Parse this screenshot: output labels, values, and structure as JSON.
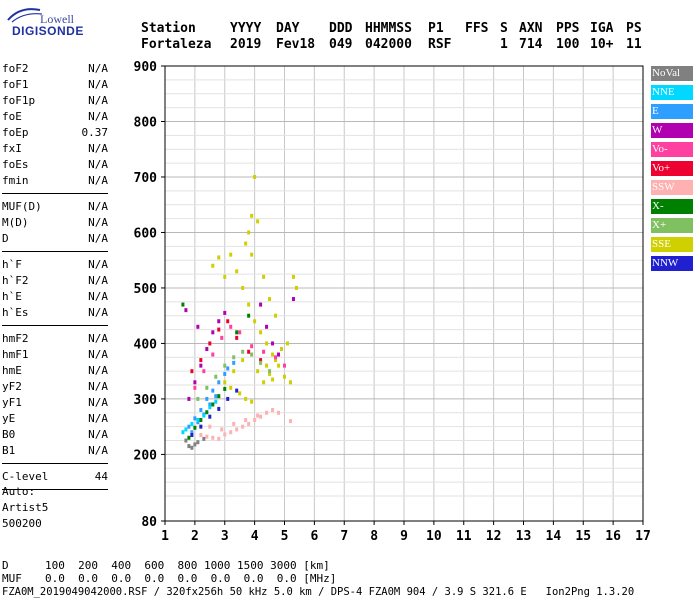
{
  "logo": {
    "brand_top": "Lowell",
    "brand_main": "DIGISONDE"
  },
  "header": {
    "labels": [
      "Station",
      "YYYY",
      "DAY",
      "DDD",
      "HHMMSS",
      "P1",
      "FFS",
      "S",
      "AXN",
      "PPS",
      "IGA",
      "PS"
    ],
    "values": [
      "Fortaleza",
      "2019",
      "Fev18",
      "049",
      "042000",
      "RSF",
      "",
      "1",
      "714",
      "100",
      "10+",
      "11"
    ]
  },
  "params_group1": [
    {
      "label": "foF2",
      "value": "N/A"
    },
    {
      "label": "foF1",
      "value": "N/A"
    },
    {
      "label": "foF1p",
      "value": "N/A"
    },
    {
      "label": "foE",
      "value": "N/A"
    },
    {
      "label": "foEp",
      "value": "0.37"
    },
    {
      "label": "fxI",
      "value": "N/A"
    },
    {
      "label": "foEs",
      "value": "N/A"
    },
    {
      "label": "fmin",
      "value": "N/A"
    }
  ],
  "params_group2": [
    {
      "label": "MUF(D)",
      "value": "N/A"
    },
    {
      "label": "M(D)",
      "value": "N/A"
    },
    {
      "label": "D",
      "value": "N/A"
    }
  ],
  "params_group3": [
    {
      "label": "h`F",
      "value": "N/A"
    },
    {
      "label": "h`F2",
      "value": "N/A"
    },
    {
      "label": "h`E",
      "value": "N/A"
    },
    {
      "label": "h`Es",
      "value": "N/A"
    }
  ],
  "params_group4": [
    {
      "label": "hmF2",
      "value": "N/A"
    },
    {
      "label": "hmF1",
      "value": "N/A"
    },
    {
      "label": "hmE",
      "value": "N/A"
    },
    {
      "label": "yF2",
      "value": "N/A"
    },
    {
      "label": "yF1",
      "value": "N/A"
    },
    {
      "label": "yE",
      "value": "N/A"
    },
    {
      "label": "B0",
      "value": "N/A"
    },
    {
      "label": "B1",
      "value": "N/A"
    }
  ],
  "params_group5": [
    {
      "label": "C-level",
      "value": "44"
    }
  ],
  "auto_block": {
    "line1": "Auto:",
    "line2": "Artist5",
    "line3": "500200"
  },
  "legend": [
    {
      "label": "NoVal",
      "color": "#808080"
    },
    {
      "label": "NNE",
      "color": "#00d8ff"
    },
    {
      "label": "E",
      "color": "#2f9fff"
    },
    {
      "label": "W",
      "color": "#b000b0"
    },
    {
      "label": "Vo-",
      "color": "#ff40a0"
    },
    {
      "label": "Vo+",
      "color": "#ee0030"
    },
    {
      "label": "SSW",
      "color": "#ffb0b0"
    },
    {
      "label": "X-",
      "color": "#008000"
    },
    {
      "label": "X+",
      "color": "#80c060"
    },
    {
      "label": "SSE",
      "color": "#d0d000"
    },
    {
      "label": "NNW",
      "color": "#2020d0"
    }
  ],
  "muf_table": {
    "row_d_label": "D",
    "row_d_values": "100  200  400  600  800 1000 1500 3000 [km]",
    "row_muf_label": "MUF",
    "row_muf_values": "0.0  0.0  0.0  0.0  0.0  0.0  0.0  0.0 [MHz]"
  },
  "footer": "FZA0M_2019049042000.RSF / 320fx256h 50 kHz 5.0 km / DPS-4 FZA0M 904 / 3.9 S 321.6 E   Ion2Png 1.3.20",
  "chart_data": {
    "type": "scatter",
    "title": "",
    "xlabel": "",
    "ylabel": "",
    "xlim": [
      1,
      17
    ],
    "ylim": [
      80,
      900
    ],
    "x_ticks": [
      1,
      2,
      3,
      4,
      5,
      6,
      7,
      8,
      9,
      10,
      11,
      12,
      13,
      14,
      15,
      16,
      17
    ],
    "y_ticks": [
      80,
      200,
      300,
      400,
      500,
      600,
      700,
      800,
      900
    ],
    "grid": true,
    "legend_position": "right",
    "series": [
      {
        "name": "SSE",
        "color": "#d0d000",
        "points": [
          [
            2.6,
            540
          ],
          [
            2.8,
            555
          ],
          [
            3.0,
            520
          ],
          [
            3.2,
            560
          ],
          [
            3.4,
            530
          ],
          [
            3.6,
            500
          ],
          [
            3.8,
            470
          ],
          [
            4.0,
            440
          ],
          [
            4.2,
            420
          ],
          [
            4.4,
            400
          ],
          [
            4.6,
            380
          ],
          [
            4.8,
            360
          ],
          [
            5.0,
            340
          ],
          [
            5.2,
            330
          ],
          [
            4.0,
            700
          ],
          [
            3.9,
            630
          ],
          [
            4.1,
            620
          ],
          [
            3.8,
            600
          ],
          [
            3.7,
            580
          ],
          [
            3.9,
            560
          ],
          [
            4.3,
            520
          ],
          [
            5.3,
            520
          ],
          [
            5.4,
            500
          ],
          [
            4.5,
            480
          ],
          [
            4.7,
            450
          ],
          [
            3.0,
            330
          ],
          [
            3.2,
            320
          ],
          [
            3.5,
            310
          ],
          [
            3.7,
            300
          ],
          [
            3.9,
            295
          ],
          [
            4.1,
            350
          ],
          [
            4.3,
            330
          ],
          [
            4.5,
            345
          ],
          [
            4.7,
            370
          ],
          [
            4.9,
            390
          ],
          [
            5.1,
            400
          ],
          [
            3.3,
            350
          ],
          [
            3.6,
            370
          ],
          [
            4.4,
            360
          ],
          [
            4.6,
            335
          ]
        ]
      },
      {
        "name": "SSW",
        "color": "#ffb0b0",
        "points": [
          [
            2.2,
            235
          ],
          [
            2.4,
            232
          ],
          [
            2.6,
            230
          ],
          [
            2.8,
            228
          ],
          [
            3.0,
            236
          ],
          [
            3.2,
            240
          ],
          [
            3.4,
            245
          ],
          [
            3.6,
            250
          ],
          [
            3.8,
            255
          ],
          [
            4.0,
            262
          ],
          [
            4.2,
            268
          ],
          [
            4.4,
            275
          ],
          [
            4.6,
            280
          ],
          [
            2.5,
            250
          ],
          [
            2.9,
            245
          ],
          [
            3.3,
            255
          ],
          [
            3.7,
            262
          ],
          [
            4.1,
            270
          ],
          [
            5.2,
            260
          ],
          [
            4.8,
            275
          ]
        ]
      },
      {
        "name": "E",
        "color": "#2f9fff",
        "points": [
          [
            1.8,
            250
          ],
          [
            2.0,
            265
          ],
          [
            2.2,
            280
          ],
          [
            2.4,
            300
          ],
          [
            2.6,
            315
          ],
          [
            2.8,
            330
          ],
          [
            3.0,
            345
          ],
          [
            1.9,
            240
          ],
          [
            2.1,
            258
          ],
          [
            2.3,
            272
          ],
          [
            2.5,
            290
          ],
          [
            2.7,
            305
          ],
          [
            3.1,
            355
          ],
          [
            3.3,
            365
          ]
        ]
      },
      {
        "name": "NNE",
        "color": "#00d8ff",
        "points": [
          [
            1.6,
            240
          ],
          [
            1.7,
            245
          ],
          [
            1.9,
            255
          ],
          [
            2.1,
            262
          ],
          [
            2.3,
            270
          ],
          [
            2.5,
            285
          ],
          [
            2.7,
            295
          ]
        ]
      },
      {
        "name": "W",
        "color": "#b000b0",
        "points": [
          [
            1.8,
            300
          ],
          [
            2.0,
            330
          ],
          [
            2.2,
            360
          ],
          [
            2.4,
            390
          ],
          [
            2.6,
            420
          ],
          [
            2.8,
            440
          ],
          [
            3.0,
            455
          ],
          [
            4.2,
            470
          ],
          [
            4.4,
            430
          ],
          [
            4.6,
            400
          ],
          [
            4.8,
            380
          ],
          [
            5.3,
            480
          ],
          [
            1.7,
            460
          ],
          [
            2.1,
            430
          ]
        ]
      },
      {
        "name": "Vo-",
        "color": "#ff40a0",
        "points": [
          [
            2.0,
            320
          ],
          [
            2.3,
            350
          ],
          [
            2.6,
            380
          ],
          [
            2.9,
            410
          ],
          [
            3.2,
            430
          ],
          [
            3.5,
            420
          ],
          [
            3.9,
            395
          ],
          [
            4.3,
            385
          ],
          [
            4.7,
            375
          ],
          [
            5.0,
            360
          ]
        ]
      },
      {
        "name": "Vo+",
        "color": "#ee0030",
        "points": [
          [
            1.9,
            350
          ],
          [
            2.2,
            370
          ],
          [
            2.5,
            400
          ],
          [
            2.8,
            425
          ],
          [
            3.1,
            440
          ],
          [
            3.4,
            410
          ],
          [
            3.8,
            385
          ],
          [
            4.2,
            370
          ]
        ]
      },
      {
        "name": "X-",
        "color": "#008000",
        "points": [
          [
            1.8,
            230
          ],
          [
            2.0,
            248
          ],
          [
            2.2,
            262
          ],
          [
            2.4,
            276
          ],
          [
            2.6,
            290
          ],
          [
            2.8,
            305
          ],
          [
            3.0,
            318
          ],
          [
            3.4,
            420
          ],
          [
            3.8,
            450
          ],
          [
            1.6,
            470
          ]
        ]
      },
      {
        "name": "X+",
        "color": "#80c060",
        "points": [
          [
            2.1,
            300
          ],
          [
            2.4,
            320
          ],
          [
            2.7,
            340
          ],
          [
            3.0,
            360
          ],
          [
            3.3,
            375
          ],
          [
            3.6,
            385
          ],
          [
            3.9,
            380
          ],
          [
            4.2,
            365
          ],
          [
            4.5,
            350
          ]
        ]
      },
      {
        "name": "NNW",
        "color": "#2020d0",
        "points": [
          [
            1.9,
            235
          ],
          [
            2.2,
            250
          ],
          [
            2.5,
            268
          ],
          [
            2.8,
            282
          ],
          [
            3.1,
            300
          ],
          [
            3.4,
            315
          ]
        ]
      },
      {
        "name": "NoVal",
        "color": "#808080",
        "points": [
          [
            1.7,
            225
          ],
          [
            1.8,
            215
          ],
          [
            1.9,
            212
          ],
          [
            2.0,
            218
          ],
          [
            2.1,
            222
          ],
          [
            2.3,
            228
          ]
        ]
      }
    ]
  }
}
